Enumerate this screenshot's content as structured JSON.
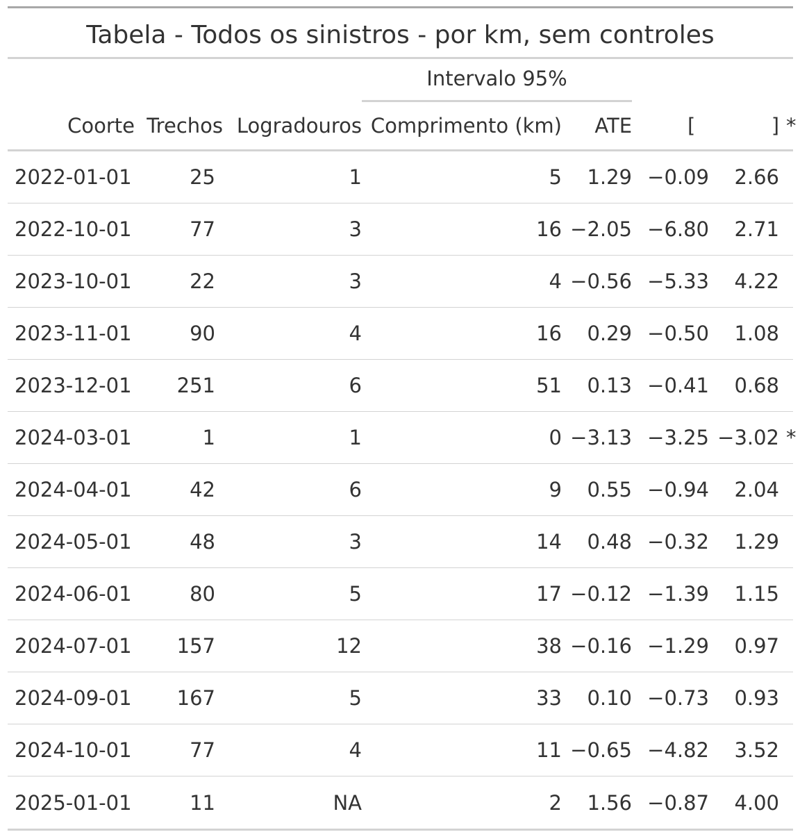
{
  "table": {
    "title": "Tabela - Todos os sinistros - por km, sem controles",
    "spanner": "Intervalo 95%",
    "headers": {
      "coorte": "Coorte",
      "trechos": "Trechos",
      "logradouros": "Logradouros",
      "comprimento": "Comprimento (km)",
      "ate": "ATE",
      "lower": "[",
      "upper": "]",
      "sig": "*"
    },
    "rows": [
      {
        "coorte": "2022-01-01",
        "trechos": "25",
        "logradouros": "1",
        "comprimento": "5",
        "ate": "1.29",
        "lower": "−0.09",
        "upper": "2.66",
        "sig": ""
      },
      {
        "coorte": "2022-10-01",
        "trechos": "77",
        "logradouros": "3",
        "comprimento": "16",
        "ate": "−2.05",
        "lower": "−6.80",
        "upper": "2.71",
        "sig": ""
      },
      {
        "coorte": "2023-10-01",
        "trechos": "22",
        "logradouros": "3",
        "comprimento": "4",
        "ate": "−0.56",
        "lower": "−5.33",
        "upper": "4.22",
        "sig": ""
      },
      {
        "coorte": "2023-11-01",
        "trechos": "90",
        "logradouros": "4",
        "comprimento": "16",
        "ate": "0.29",
        "lower": "−0.50",
        "upper": "1.08",
        "sig": ""
      },
      {
        "coorte": "2023-12-01",
        "trechos": "251",
        "logradouros": "6",
        "comprimento": "51",
        "ate": "0.13",
        "lower": "−0.41",
        "upper": "0.68",
        "sig": ""
      },
      {
        "coorte": "2024-03-01",
        "trechos": "1",
        "logradouros": "1",
        "comprimento": "0",
        "ate": "−3.13",
        "lower": "−3.25",
        "upper": "−3.02",
        "sig": "*"
      },
      {
        "coorte": "2024-04-01",
        "trechos": "42",
        "logradouros": "6",
        "comprimento": "9",
        "ate": "0.55",
        "lower": "−0.94",
        "upper": "2.04",
        "sig": ""
      },
      {
        "coorte": "2024-05-01",
        "trechos": "48",
        "logradouros": "3",
        "comprimento": "14",
        "ate": "0.48",
        "lower": "−0.32",
        "upper": "1.29",
        "sig": ""
      },
      {
        "coorte": "2024-06-01",
        "trechos": "80",
        "logradouros": "5",
        "comprimento": "17",
        "ate": "−0.12",
        "lower": "−1.39",
        "upper": "1.15",
        "sig": ""
      },
      {
        "coorte": "2024-07-01",
        "trechos": "157",
        "logradouros": "12",
        "comprimento": "38",
        "ate": "−0.16",
        "lower": "−1.29",
        "upper": "0.97",
        "sig": ""
      },
      {
        "coorte": "2024-09-01",
        "trechos": "167",
        "logradouros": "5",
        "comprimento": "33",
        "ate": "0.10",
        "lower": "−0.73",
        "upper": "0.93",
        "sig": ""
      },
      {
        "coorte": "2024-10-01",
        "trechos": "77",
        "logradouros": "4",
        "comprimento": "11",
        "ate": "−0.65",
        "lower": "−4.82",
        "upper": "3.52",
        "sig": ""
      },
      {
        "coorte": "2025-01-01",
        "trechos": "11",
        "logradouros": "NA",
        "comprimento": "2",
        "ate": "1.56",
        "lower": "−0.87",
        "upper": "4.00",
        "sig": ""
      }
    ]
  }
}
